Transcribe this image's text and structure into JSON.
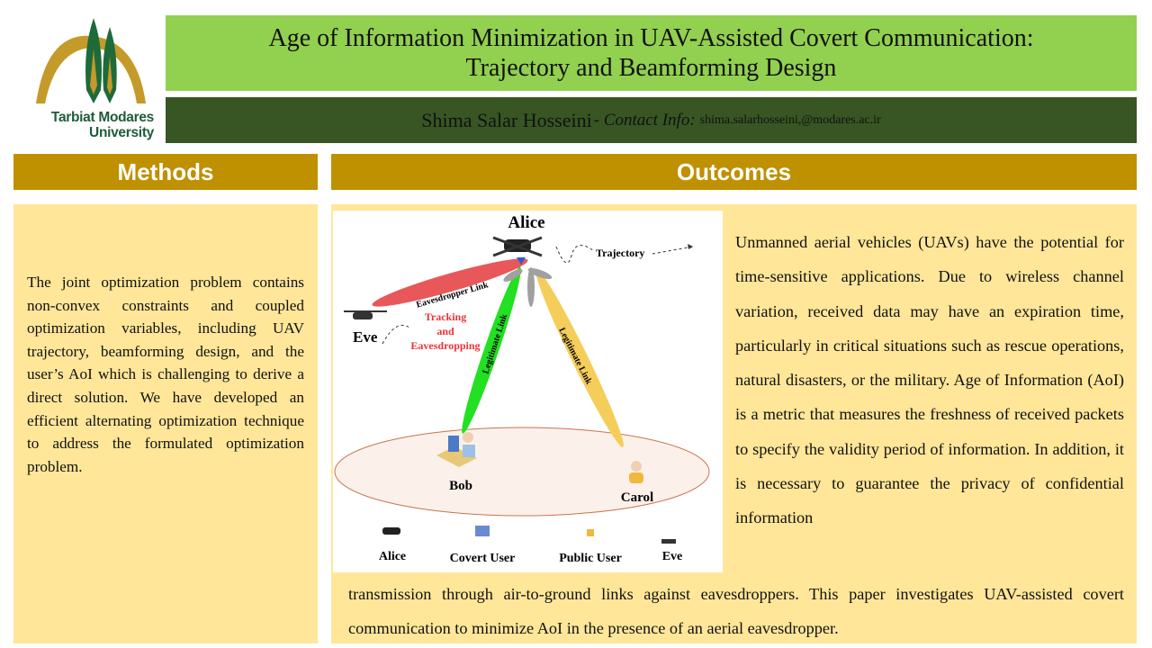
{
  "logo": {
    "university_line1": "Tarbiat Modares",
    "university_line2": "University"
  },
  "header": {
    "title_line1": "Age of Information Minimization in UAV-Assisted Covert Communication:",
    "title_line2": "Trajectory and Beamforming Design",
    "author": "Shima Salar Hosseini",
    "contact_label": "- Contact Info:",
    "email": "shima.salarhosseini,@modares.ac.ir"
  },
  "methods": {
    "heading": "Methods",
    "text": "The joint optimization problem contains non-convex constraints and coupled optimization variables, including UAV trajectory, beamforming design, and the user’s AoI which is challenging to derive a direct solution. We have developed an efficient alternating optimization technique to address the formulated optimization problem."
  },
  "outcomes": {
    "heading": "Outcomes",
    "text_right": "Unmanned aerial vehicles (UAVs) have the potential for time-sensitive applications. Due to wireless channel variation, received data may have an expiration time, particularly in critical situations such as rescue operations, natural disasters, or the military. Age of Information (AoI) is a metric that measures the freshness of received packets to specify the validity period of information. In addition, it is necessary to guarantee the privacy of confidential information",
    "text_bottom": "transmission through air-to-ground links against eavesdroppers. This paper investigates UAV-assisted covert communication to minimize AoI in the presence of an aerial eavesdropper."
  },
  "diagram": {
    "alice": "Alice",
    "eve": "Eve",
    "bob": "Bob",
    "carol": "Carol",
    "trajectory": "Trajectory",
    "eavesdropper_link": "Eavesdropper Link",
    "legitimate_link": "Legitimate Link",
    "tracking1": "Tracking",
    "tracking2": "and",
    "tracking3": "Eavesdropping",
    "legend": [
      "Alice",
      "Covert User",
      "Public User",
      "Eve"
    ],
    "colors": {
      "eaves_beam": "#e8585a",
      "bob_beam": "#22e022",
      "carol_beam": "#f5cd5a",
      "side_lobes": "#a0a0a0",
      "tracking_text": "#e8333a"
    }
  }
}
